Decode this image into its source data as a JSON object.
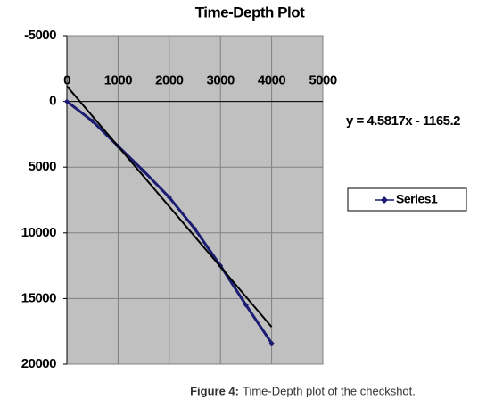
{
  "chart_data": {
    "type": "line",
    "title": "Time-Depth Plot",
    "x": [
      0,
      500,
      1000,
      1500,
      2000,
      2500,
      3000,
      3500,
      4000
    ],
    "series": [
      {
        "name": "Series1",
        "color": "#1c1c72",
        "values": [
          0,
          1500,
          3400,
          5300,
          7300,
          9700,
          12500,
          15500,
          18400
        ]
      }
    ],
    "trendline": {
      "label": "y = 4.5817x - 1165.2",
      "color": "#000000",
      "x": [
        0,
        4000
      ],
      "values": [
        -1165.2,
        17161.6
      ]
    },
    "xlim": [
      0,
      5000
    ],
    "xticks": [
      0,
      1000,
      2000,
      3000,
      4000,
      5000
    ],
    "ylim": [
      -5000,
      20000
    ],
    "yticks": [
      -5000,
      0,
      5000,
      10000,
      15000,
      20000
    ],
    "y_inverted": true,
    "grid": true,
    "plot_background": "#c0c0c0",
    "legend_position": "right"
  },
  "caption": {
    "label": "Figure 4:",
    "text": "Time-Depth plot of the checkshot."
  }
}
